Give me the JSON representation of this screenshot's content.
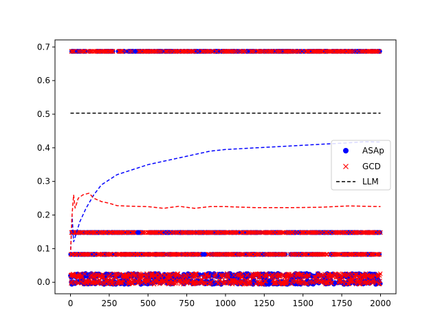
{
  "chart_data": {
    "type": "scatter",
    "title": "",
    "xlabel": "",
    "ylabel": "",
    "xlim": [
      -100,
      2100
    ],
    "ylim": [
      -0.0343,
      0.721
    ],
    "xticks": [
      0,
      250,
      500,
      750,
      1000,
      1250,
      1500,
      1750,
      2000
    ],
    "xtick_labels": [
      "0",
      "250",
      "500",
      "750",
      "1000",
      "1250",
      "1500",
      "1750",
      "2000"
    ],
    "yticks": [
      0.0,
      0.1,
      0.2,
      0.3,
      0.4,
      0.5,
      0.6,
      0.7
    ],
    "ytick_labels": [
      "0.0",
      "0.1",
      "0.2",
      "0.3",
      "0.4",
      "0.5",
      "0.6",
      "0.7"
    ],
    "legend": {
      "placement": "center-right",
      "entries": [
        {
          "label": "ASAp",
          "marker": "circle",
          "color": "#0000ff"
        },
        {
          "label": "GCD",
          "marker": "x",
          "color": "#ff0000"
        },
        {
          "label": "LLM",
          "marker": "dashed-line",
          "color": "#000000"
        }
      ]
    },
    "series": [
      {
        "name": "ASAp",
        "kind": "scatter",
        "color": "#0000ff",
        "x_range": [
          0,
          2000
        ],
        "levels": [
          0.687,
          0.148,
          0.083,
          0.0,
          0.02
        ],
        "samples_per_level": 320
      },
      {
        "name": "GCD",
        "kind": "scatter",
        "color": "#ff0000",
        "x_range": [
          0,
          2000
        ],
        "levels": [
          0.687,
          0.148,
          0.083,
          0.0,
          0.02
        ],
        "samples_per_level": 320
      },
      {
        "name": "LLM",
        "kind": "line",
        "color": "#000000",
        "x": [
          0,
          2000
        ],
        "y": [
          0.503,
          0.503
        ]
      },
      {
        "name": "ASAp running mean",
        "kind": "line",
        "color": "#0000ff",
        "x": [
          0,
          10,
          20,
          40,
          60,
          100,
          150,
          200,
          300,
          400,
          500,
          600,
          700,
          800,
          900,
          1000,
          1200,
          1400,
          1600,
          1800,
          1900,
          2000
        ],
        "y": [
          0.08,
          0.2,
          0.12,
          0.15,
          0.18,
          0.22,
          0.26,
          0.29,
          0.32,
          0.335,
          0.35,
          0.36,
          0.37,
          0.38,
          0.39,
          0.395,
          0.4,
          0.405,
          0.41,
          0.415,
          0.418,
          0.417
        ]
      },
      {
        "name": "GCD running mean",
        "kind": "line",
        "color": "#ff0000",
        "x": [
          0,
          10,
          20,
          30,
          50,
          80,
          120,
          150,
          200,
          250,
          300,
          400,
          500,
          600,
          700,
          800,
          900,
          1000,
          1200,
          1400,
          1600,
          1800,
          2000
        ],
        "y": [
          0.08,
          0.2,
          0.26,
          0.22,
          0.25,
          0.26,
          0.265,
          0.25,
          0.24,
          0.235,
          0.228,
          0.226,
          0.225,
          0.22,
          0.226,
          0.22,
          0.225,
          0.225,
          0.222,
          0.222,
          0.223,
          0.227,
          0.225
        ]
      }
    ]
  }
}
